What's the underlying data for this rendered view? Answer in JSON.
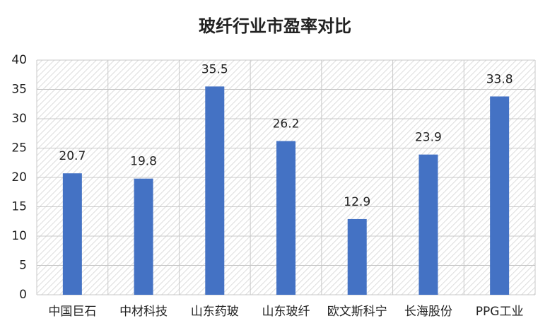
{
  "chart_data": {
    "type": "bar",
    "title": "玻纤行业市盈率对比",
    "categories": [
      "中国巨石",
      "中材科技",
      "山东药玻",
      "山东玻纤",
      "欧文斯科宁",
      "长海股份",
      "PPG工业"
    ],
    "values": [
      20.7,
      19.8,
      35.5,
      26.2,
      12.9,
      23.9,
      33.8
    ],
    "color": "#4472c4",
    "ylim": [
      0,
      40
    ],
    "yticks": [
      0,
      5,
      10,
      15,
      20,
      25,
      30,
      35,
      40
    ],
    "grid": true
  }
}
